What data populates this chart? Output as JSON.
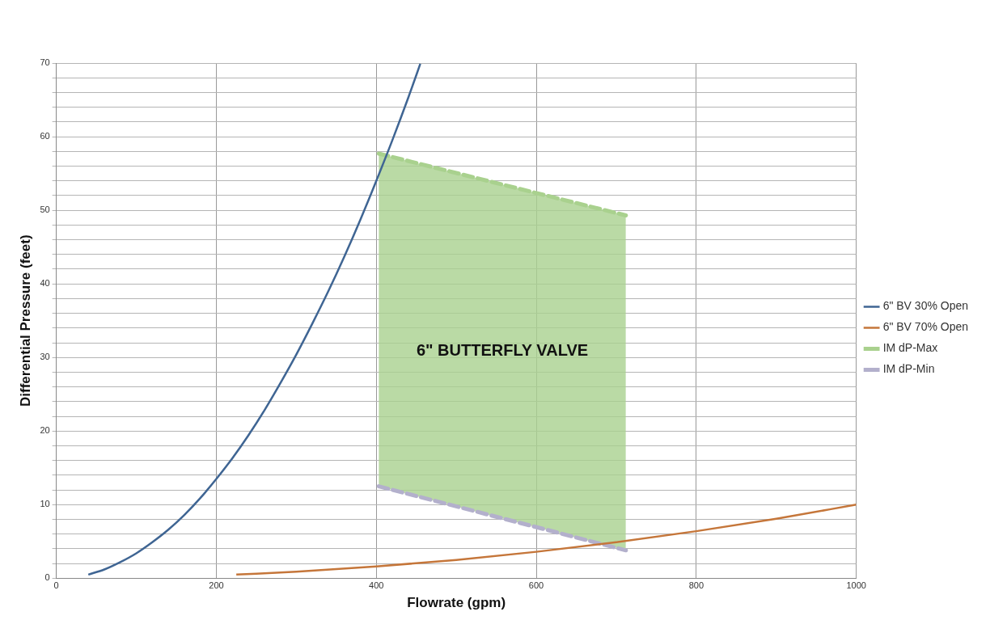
{
  "chart_data": {
    "type": "line",
    "xlabel": "Flowrate (gpm)",
    "ylabel": "Differential Pressure (feet)",
    "xlim": [
      0,
      1000
    ],
    "xticks": [
      0,
      200,
      400,
      600,
      800,
      1000
    ],
    "ylim": [
      0,
      70
    ],
    "yticks": [
      0,
      {
        "value": 2,
        "label": null
      },
      {
        "value": 4,
        "label": null
      },
      {
        "value": 6,
        "label": null
      },
      {
        "value": 8,
        "label": null
      },
      10,
      {
        "value": 12,
        "label": null
      },
      {
        "value": 14,
        "label": null
      },
      {
        "value": 16,
        "label": null
      },
      {
        "value": 18,
        "label": null
      },
      20,
      {
        "value": 22,
        "label": null
      },
      {
        "value": 24,
        "label": null
      },
      {
        "value": 26,
        "label": null
      },
      {
        "value": 28,
        "label": null
      },
      30,
      {
        "value": 32,
        "label": null
      },
      {
        "value": 34,
        "label": null
      },
      {
        "value": 36,
        "label": null
      },
      {
        "value": 38,
        "label": null
      },
      40,
      {
        "value": 42,
        "label": null
      },
      {
        "value": 44,
        "label": null
      },
      {
        "value": 46,
        "label": null
      },
      {
        "value": 48,
        "label": null
      },
      50,
      {
        "value": 52,
        "label": null
      },
      {
        "value": 54,
        "label": null
      },
      {
        "value": 56,
        "label": null
      },
      {
        "value": 58,
        "label": null
      },
      60,
      {
        "value": 62,
        "label": null
      },
      {
        "value": 64,
        "label": null
      },
      {
        "value": 66,
        "label": null
      },
      {
        "value": 68,
        "label": null
      },
      70
    ],
    "grid": true,
    "legend": "right",
    "marker": "none",
    "series": [
      {
        "name": "6\" BV 30% Open",
        "color": "#3f6593",
        "line_style": "solid",
        "x": [
          40,
          60,
          80,
          100,
          120,
          140,
          160,
          180,
          200,
          220,
          240,
          260,
          280,
          300,
          320,
          340,
          360,
          380,
          400,
          420,
          440,
          455
        ],
        "values": [
          0.5,
          1.2,
          2.2,
          3.4,
          4.9,
          6.6,
          8.6,
          10.9,
          13.5,
          16.3,
          19.4,
          22.8,
          26.5,
          30.4,
          34.6,
          39,
          43.7,
          48.7,
          54,
          59.5,
          65.3,
          69.9
        ]
      },
      {
        "name": "6\" BV 70% Open",
        "color": "#c5763a",
        "line_style": "solid",
        "x": [
          225,
          300,
          400,
          500,
          600,
          700,
          800,
          900,
          1000
        ],
        "values": [
          0.5,
          0.9,
          1.6,
          2.5,
          3.6,
          4.9,
          6.4,
          8.1,
          10
        ]
      },
      {
        "name": "IM dP-Max",
        "color": "#a9d18e",
        "line_style": "dashed",
        "x": [
          403,
          712
        ],
        "values": [
          57.7,
          49.3
        ],
        "lower": [
          12.5,
          3.8
        ],
        "upper": [
          57.7,
          49.3
        ]
      },
      {
        "name": "IM dP-Min",
        "color": "#b3b0cc",
        "line_style": "dashed",
        "x": [
          403,
          712
        ],
        "values": [
          12.5,
          3.8
        ]
      }
    ],
    "annotations": [
      "6\" BUTTERFLY VALVE"
    ]
  }
}
